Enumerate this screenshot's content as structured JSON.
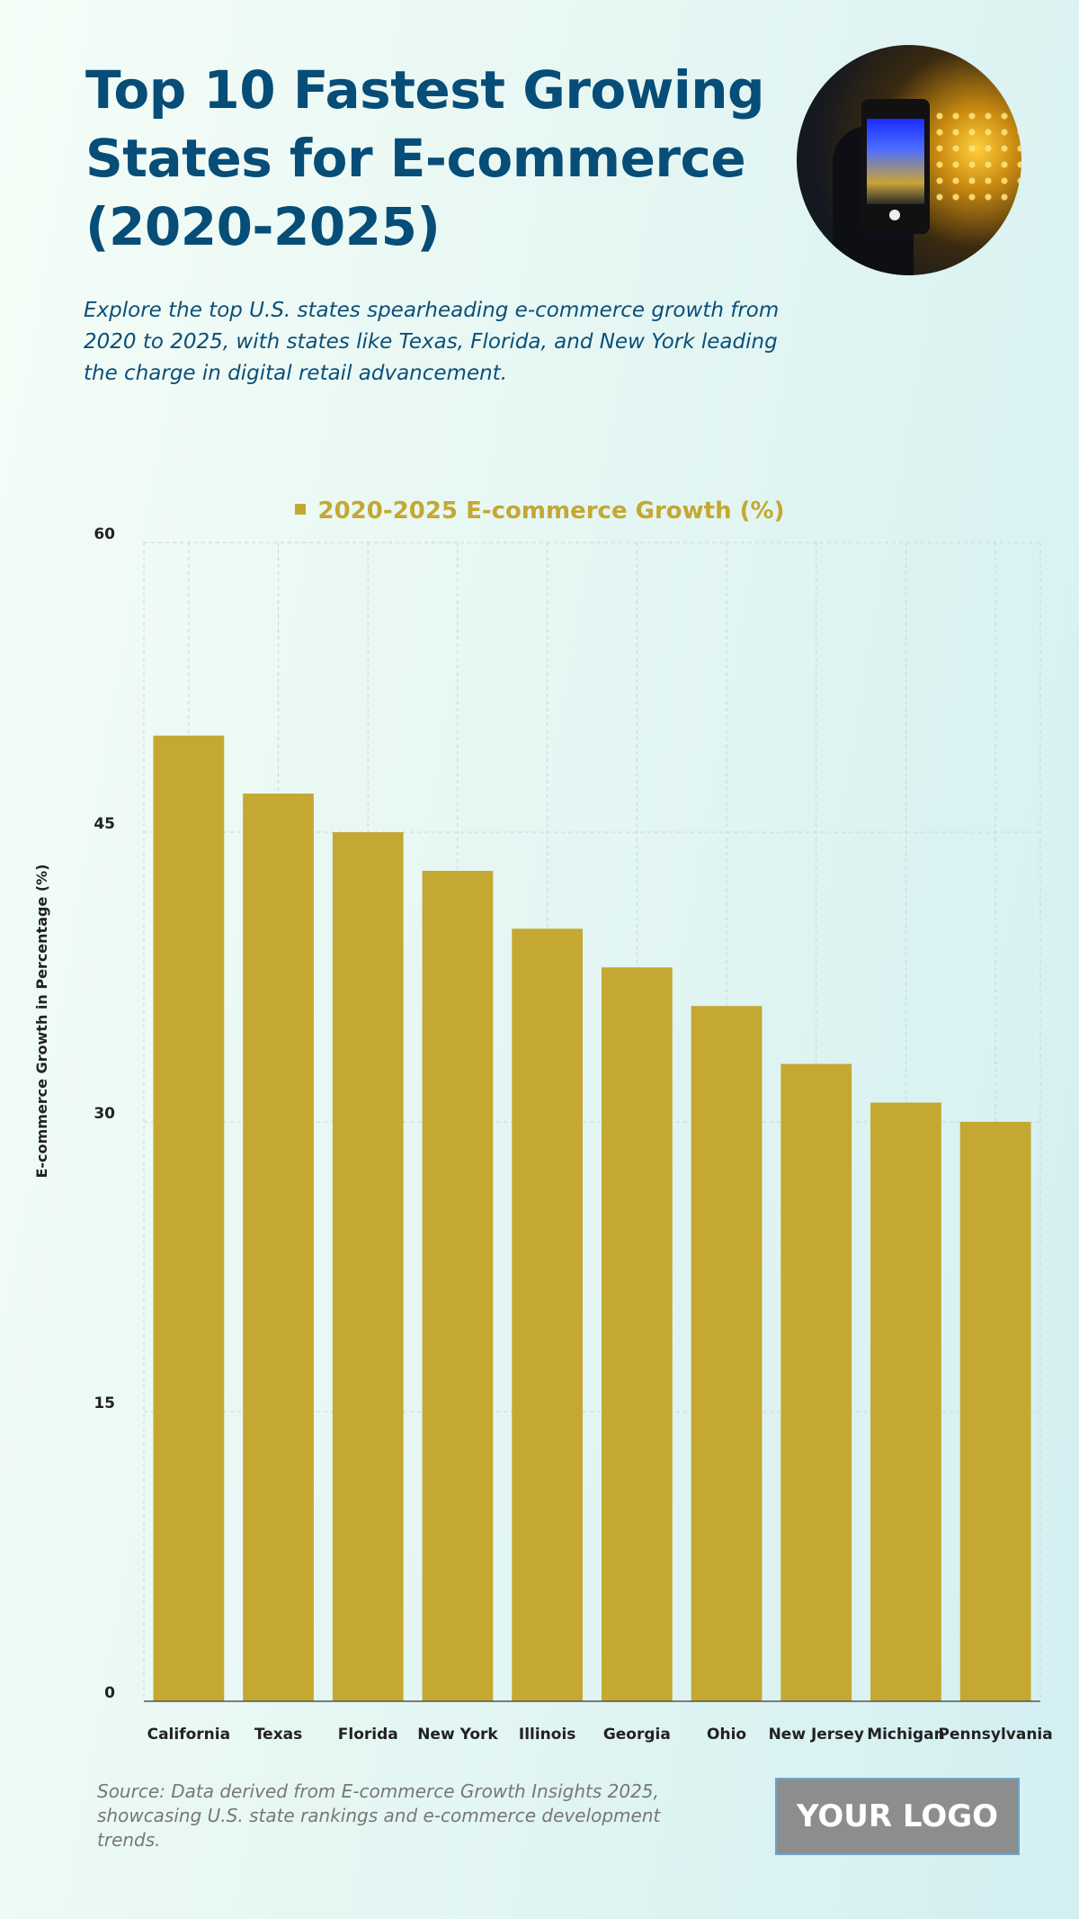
{
  "header": {
    "title": "Top 10 Fastest Growing States for E-commerce (2020-2025)",
    "subtitle": "Explore the top U.S. states spearheading e-commerce growth from 2020 to 2025, with states like Texas, Florida, and New York leading the charge in digital retail advancement.",
    "image_icon": "phone-night-market-photo"
  },
  "chart_data": {
    "type": "bar",
    "title": "",
    "legend": [
      "2020-2025 E-commerce Growth (%)"
    ],
    "legend_position": "top-center",
    "categories": [
      "California",
      "Texas",
      "Florida",
      "New York",
      "Illinois",
      "Georgia",
      "Ohio",
      "New Jersey",
      "Michigan",
      "Pennsylvania"
    ],
    "series": [
      {
        "name": "2020-2025 E-commerce Growth (%)",
        "values": [
          50,
          47,
          45,
          43,
          40,
          38,
          36,
          33,
          31,
          30
        ]
      }
    ],
    "xlabel": "",
    "ylabel": "E-commerce Growth in Percentage (%)",
    "ylim": [
      0,
      60
    ],
    "yticks": [
      0,
      15,
      30,
      45,
      60
    ],
    "grid": true,
    "colors": {
      "bar": "#c4a832",
      "grid": "#c9d6d4",
      "axis": "#555555"
    }
  },
  "footer": {
    "source": "Source: Data derived from E-commerce Growth Insights 2025, showcasing U.S. state rankings and e-commerce development trends.",
    "logo": "YOUR LOGO"
  }
}
